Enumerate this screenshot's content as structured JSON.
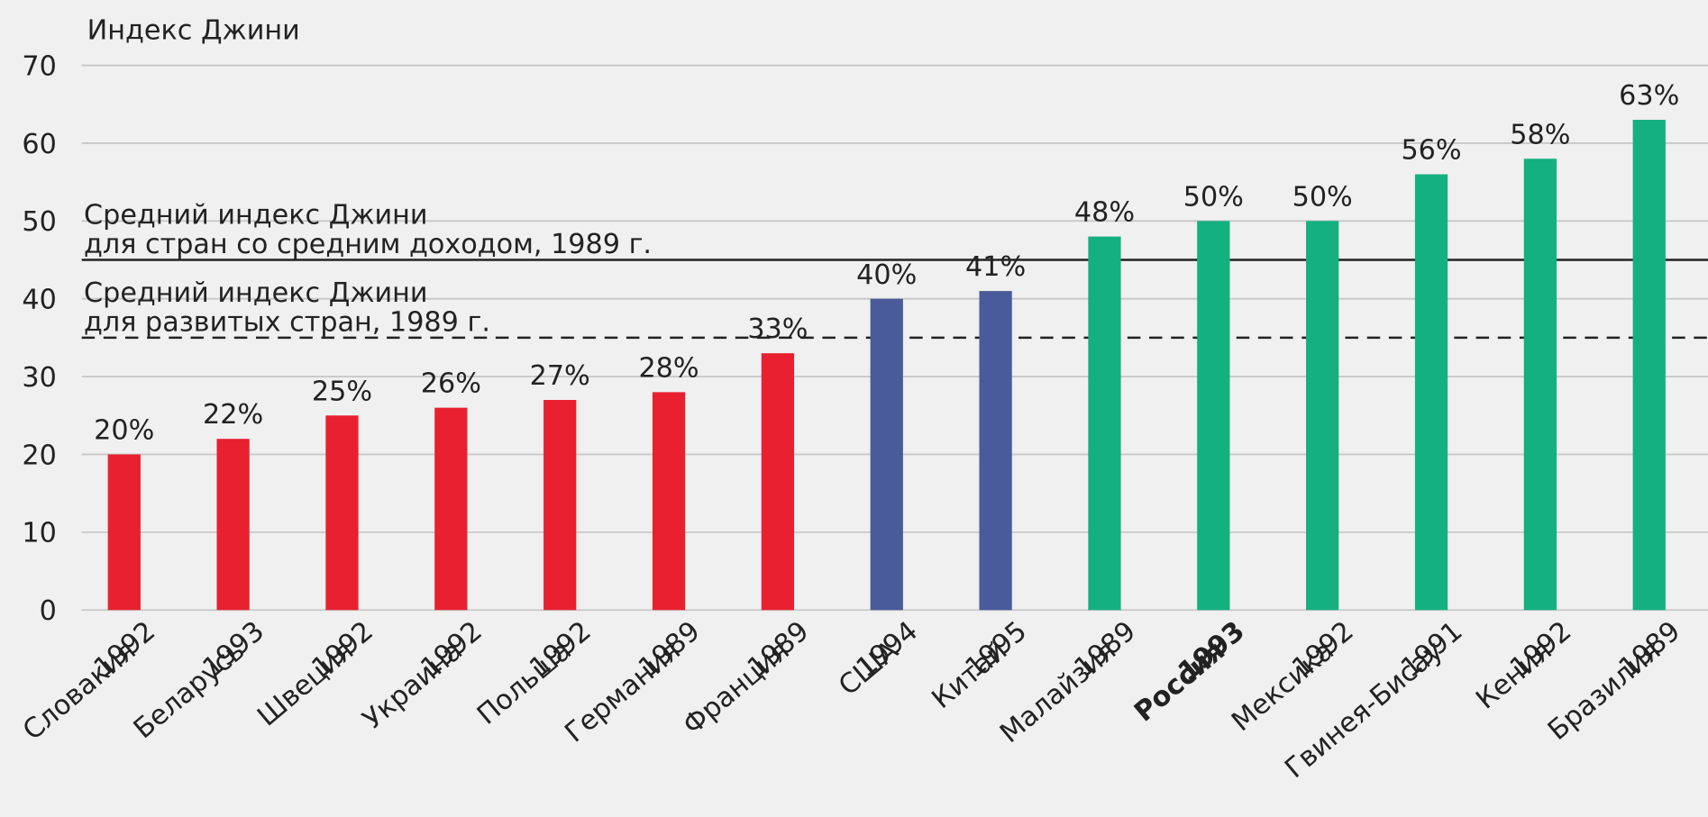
{
  "chart_data": {
    "type": "bar",
    "title": "Индекс Джини",
    "categories": [
      "Словакия",
      "Беларусь",
      "Швеция",
      "Украина",
      "Польша",
      "Германия",
      "Франция",
      "США",
      "Китай",
      "Малайзия",
      "Россия",
      "Мексика",
      "Гвинея-Бисау",
      "Кения",
      "Бразилия"
    ],
    "category_years": [
      "1992",
      "1993",
      "1992",
      "1992",
      "1992",
      "1989",
      "1989",
      "1994",
      "1995",
      "1989",
      "1993",
      "1992",
      "1991",
      "1992",
      "1989"
    ],
    "values": [
      20,
      22,
      25,
      26,
      27,
      28,
      33,
      40,
      41,
      48,
      50,
      50,
      56,
      58,
      63
    ],
    "value_labels": [
      "20%",
      "22%",
      "25%",
      "26%",
      "27%",
      "28%",
      "33%",
      "40%",
      "41%",
      "48%",
      "50%",
      "50%",
      "56%",
      "58%",
      "63%"
    ],
    "colors": [
      "#e8202f",
      "#e8202f",
      "#e8202f",
      "#e8202f",
      "#e8202f",
      "#e8202f",
      "#e8202f",
      "#4a5b9b",
      "#4a5b9b",
      "#14b07f",
      "#14b07f",
      "#14b07f",
      "#14b07f",
      "#14b07f",
      "#14b07f"
    ],
    "highlight_index": 10,
    "ylim": [
      0,
      70
    ],
    "yticks": [
      0,
      10,
      20,
      30,
      40,
      50,
      60,
      70
    ],
    "grid": true,
    "reference_lines": [
      {
        "value": 45,
        "style": "solid",
        "label": [
          "Средний индекс Джини",
          "для стран со средним доходом, 1989 г."
        ]
      },
      {
        "value": 35,
        "style": "dashed",
        "label": [
          "Средний индекс Джини",
          "для развитых стран, 1989 г."
        ]
      }
    ]
  }
}
